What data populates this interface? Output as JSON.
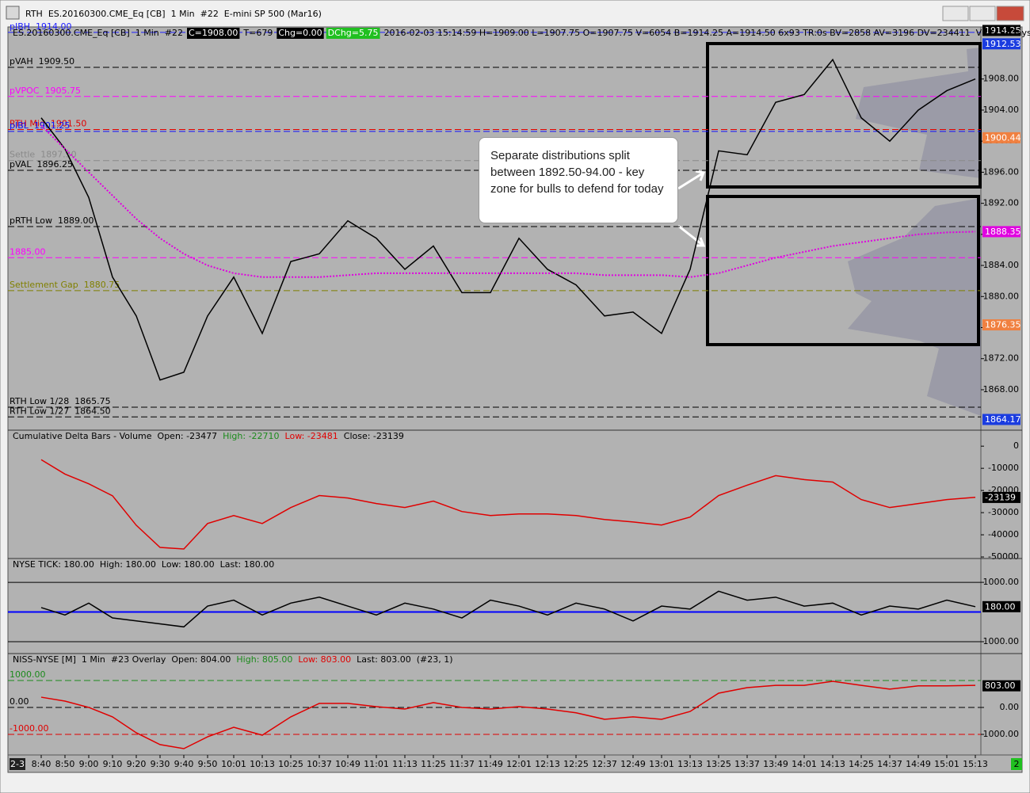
{
  "window": {
    "title": "RTH  ES.20160300.CME_Eq [CB]  1 Min  #22  E-mini SP 500 (Mar16)"
  },
  "annotation": "Separate distributions split between 1892.50-94.00 - key zone for bulls to defend for today",
  "time_axis": {
    "date": "2-3",
    "page": "2",
    "categories": [
      "8:40",
      "8:50",
      "9:00",
      "9:10",
      "9:20",
      "9:30",
      "9:40",
      "9:50",
      "10:01",
      "10:13",
      "10:25",
      "10:37",
      "10:49",
      "11:01",
      "11:13",
      "11:25",
      "11:37",
      "11:49",
      "12:01",
      "12:13",
      "12:25",
      "12:37",
      "12:49",
      "13:01",
      "13:13",
      "13:25",
      "13:37",
      "13:49",
      "14:01",
      "14:13",
      "14:25",
      "14:37",
      "14:49",
      "15:01",
      "15:13"
    ]
  },
  "chart_data": [
    {
      "type": "line",
      "header": [
        {
          "text": "ES.20160300.CME_Eq [CB]  1 Min  #22"
        },
        {
          "text": "C=1908.00",
          "box": "#000000"
        },
        {
          "text": "T=679"
        },
        {
          "text": "Chg=0.00",
          "box": "#000000"
        },
        {
          "text": "DChg=5.75",
          "box": "#20c020"
        },
        {
          "text": "2016-02-03 15:14:59 H=1909.00 L=1907.75 O=1907.75 V=6054 B=1914.25 A=1914.50 6x93 TR:0s BV=2858 AV=3196 DV=234411  VbP - 1 Days"
        },
        {
          "text": "Point of Contro",
          "color": "#ff00ff"
        }
      ],
      "ylim": [
        1863.1,
        1914.5
      ],
      "yticks": [
        {
          "value": 1908,
          "label": "1908.00"
        },
        {
          "value": 1904,
          "label": "1904.00"
        },
        {
          "value": 1900,
          "label": "1900.00"
        },
        {
          "value": 1896,
          "label": "1896.00"
        },
        {
          "value": 1892,
          "label": "1892.00"
        },
        {
          "value": 1888,
          "label": "1888.00"
        },
        {
          "value": 1884,
          "label": "1884.00"
        },
        {
          "value": 1880,
          "label": "1880.00"
        },
        {
          "value": 1876,
          "label": "1876.00"
        },
        {
          "value": 1872,
          "label": "1872.00"
        },
        {
          "value": 1868,
          "label": "1868.00"
        }
      ],
      "right_labels": [
        {
          "value": 1914.25,
          "label": "1914.25",
          "color": "#000000"
        },
        {
          "value": 1912.53,
          "label": "1912.53",
          "color": "#1a3ce0"
        },
        {
          "value": 1900.44,
          "label": "1900.44",
          "color": "#f08040"
        },
        {
          "value": 1888.35,
          "label": "1888.35",
          "color": "#e000e0"
        },
        {
          "value": 1876.35,
          "label": "1876.35",
          "color": "#f08040"
        },
        {
          "value": 1864.17,
          "label": "1864.17",
          "color": "#1a3ce0"
        }
      ],
      "levels": [
        {
          "value": 1914,
          "label": "pIBH  1914.00",
          "color": "#2020ff"
        },
        {
          "value": 1909.5,
          "label": "pVAH  1909.50",
          "color": "#000000"
        },
        {
          "value": 1905.75,
          "label": "pVPOC  1905.75",
          "color": "#ff00ff"
        },
        {
          "value": 1901.5,
          "label": "RTH Mid  1901.50",
          "color": "#e00000"
        },
        {
          "value": 1901.25,
          "label": "pIBL  1901.25",
          "color": "#1010ff"
        },
        {
          "value": 1897.5,
          "label": "Settle  1897.50",
          "color": "#8a8a8a"
        },
        {
          "value": 1896.25,
          "label": "pVAL  1896.25",
          "color": "#000000"
        },
        {
          "value": 1889,
          "label": "pRTH Low  1889.00",
          "color": "#000000"
        },
        {
          "value": 1885,
          "label": "1885.00",
          "color": "#ff00ff"
        },
        {
          "value": 1880.75,
          "label": "Settlement Gap  1880.75",
          "color": "#808000"
        },
        {
          "value": 1865.75,
          "label": "RTH Low 1/28  1865.75",
          "color": "#000000"
        },
        {
          "value": 1864.5,
          "label": "RTH Low 1/27  1864.50",
          "color": "#000000"
        }
      ],
      "series": [
        {
          "color": "#000000",
          "values": [
            1903,
            1899,
            1892.75,
            1882.5,
            1877.5,
            1869.25,
            1870.25,
            1877.5,
            1882.5,
            1875.25,
            1884.5,
            1885.5,
            1889.75,
            1887.5,
            1883.5,
            1886.5,
            1880.5,
            1880.5,
            1887.5,
            1883.5,
            1881.5,
            1877.5,
            1878,
            1875.25,
            1883.5,
            1898.75,
            1898.25,
            1905,
            1906,
            1910.5,
            1903,
            1900,
            1904,
            1906.5,
            1908
          ]
        },
        {
          "color": "#e000e0",
          "dash": true,
          "values": [
            1902,
            1899,
            1896,
            1893,
            1890,
            1887.5,
            1885.5,
            1884,
            1883,
            1882.5,
            1882.5,
            1882.5,
            1882.75,
            1883,
            1883,
            1883,
            1883,
            1883,
            1883,
            1883,
            1883,
            1882.75,
            1882.75,
            1882.75,
            1882.5,
            1883,
            1884,
            1885,
            1885.75,
            1886.5,
            1887,
            1887.5,
            1888,
            1888.25,
            1888.35
          ]
        }
      ]
    },
    {
      "type": "line",
      "header": [
        {
          "text": "Cumulative Delta Bars - Volume  Open: -23477"
        },
        {
          "text": "High: -22710",
          "color": "#1c8a1c"
        },
        {
          "text": "Low: -23481",
          "color": "#e00000"
        },
        {
          "text": "Close: -23139"
        }
      ],
      "ylim": [
        -50700,
        6500
      ],
      "yticks": [
        0,
        -10000,
        -20000,
        -30000,
        -40000,
        -50000
      ],
      "right_labels": [
        {
          "value": -23139,
          "label": "-23139",
          "color": "#000000"
        }
      ],
      "series": [
        {
          "color": "#e00000",
          "values": [
            -6100,
            -12600,
            -17000,
            -22400,
            -35700,
            -45700,
            -46400,
            -34900,
            -31300,
            -34900,
            -27700,
            -22300,
            -23400,
            -25900,
            -27700,
            -24800,
            -29500,
            -31300,
            -30600,
            -30600,
            -31300,
            -33100,
            -34200,
            -35600,
            -32000,
            -22300,
            -17600,
            -13300,
            -15100,
            -16200,
            -24100,
            -27700,
            -25900,
            -24100,
            -23100
          ]
        }
      ]
    },
    {
      "type": "line",
      "header": [
        {
          "text": "NYSE TICK: 180.00  High: 180.00  Low: 180.00  Last: 180.00"
        }
      ],
      "ylim": [
        -1400,
        1750
      ],
      "yticks": [
        {
          "value": 1000,
          "label": "1000.00"
        },
        {
          "value": -1000,
          "label": "-1000.00"
        }
      ],
      "grid": true,
      "right_labels": [
        {
          "value": 180,
          "label": "180.00",
          "color": "#000000"
        }
      ],
      "levels": [
        {
          "value": 0,
          "color": "#0000ff"
        }
      ],
      "series": [
        {
          "color": "#000000",
          "values": [
            150,
            -100,
            300,
            -200,
            -300,
            -400,
            -500,
            200,
            400,
            -100,
            300,
            500,
            200,
            -100,
            300,
            100,
            -200,
            400,
            200,
            -100,
            300,
            100,
            -300,
            200,
            100,
            700,
            400,
            500,
            200,
            300,
            -100,
            200,
            100,
            400,
            180
          ]
        }
      ]
    },
    {
      "type": "line",
      "header": [
        {
          "text": "NISS-NYSE [M]  1 Min  #23 Overlay  Open: 804.00"
        },
        {
          "text": "High: 805.00",
          "color": "#1c8a1c"
        },
        {
          "text": "Low: 803.00",
          "color": "#e00000"
        },
        {
          "text": "Last: 803.00  (#23, 1)"
        }
      ],
      "ylim": [
        -1735,
        1940
      ],
      "yticks": [
        {
          "value": 0,
          "label": "0.00"
        },
        {
          "value": -1000,
          "label": "-1000.00"
        }
      ],
      "right_labels": [
        {
          "value": 803,
          "label": "803.00",
          "color": "#000000"
        }
      ],
      "levels": [
        {
          "value": 1000,
          "label": "1000.00",
          "color": "#1c8a1c"
        },
        {
          "value": 0,
          "label": "0.00",
          "color": "#000000"
        },
        {
          "value": -1000,
          "label": "-1000.00",
          "color": "#e00000"
        }
      ],
      "series": [
        {
          "color": "#e00000",
          "values": [
            380,
            235,
            0,
            -350,
            -940,
            -1380,
            -1530,
            -1090,
            -735,
            -1030,
            -350,
            150,
            150,
            30,
            -60,
            180,
            0,
            -60,
            30,
            -60,
            -200,
            -440,
            -350,
            -440,
            -150,
            530,
            735,
            820,
            820,
            970,
            820,
            680,
            800,
            800,
            820
          ]
        }
      ]
    }
  ]
}
